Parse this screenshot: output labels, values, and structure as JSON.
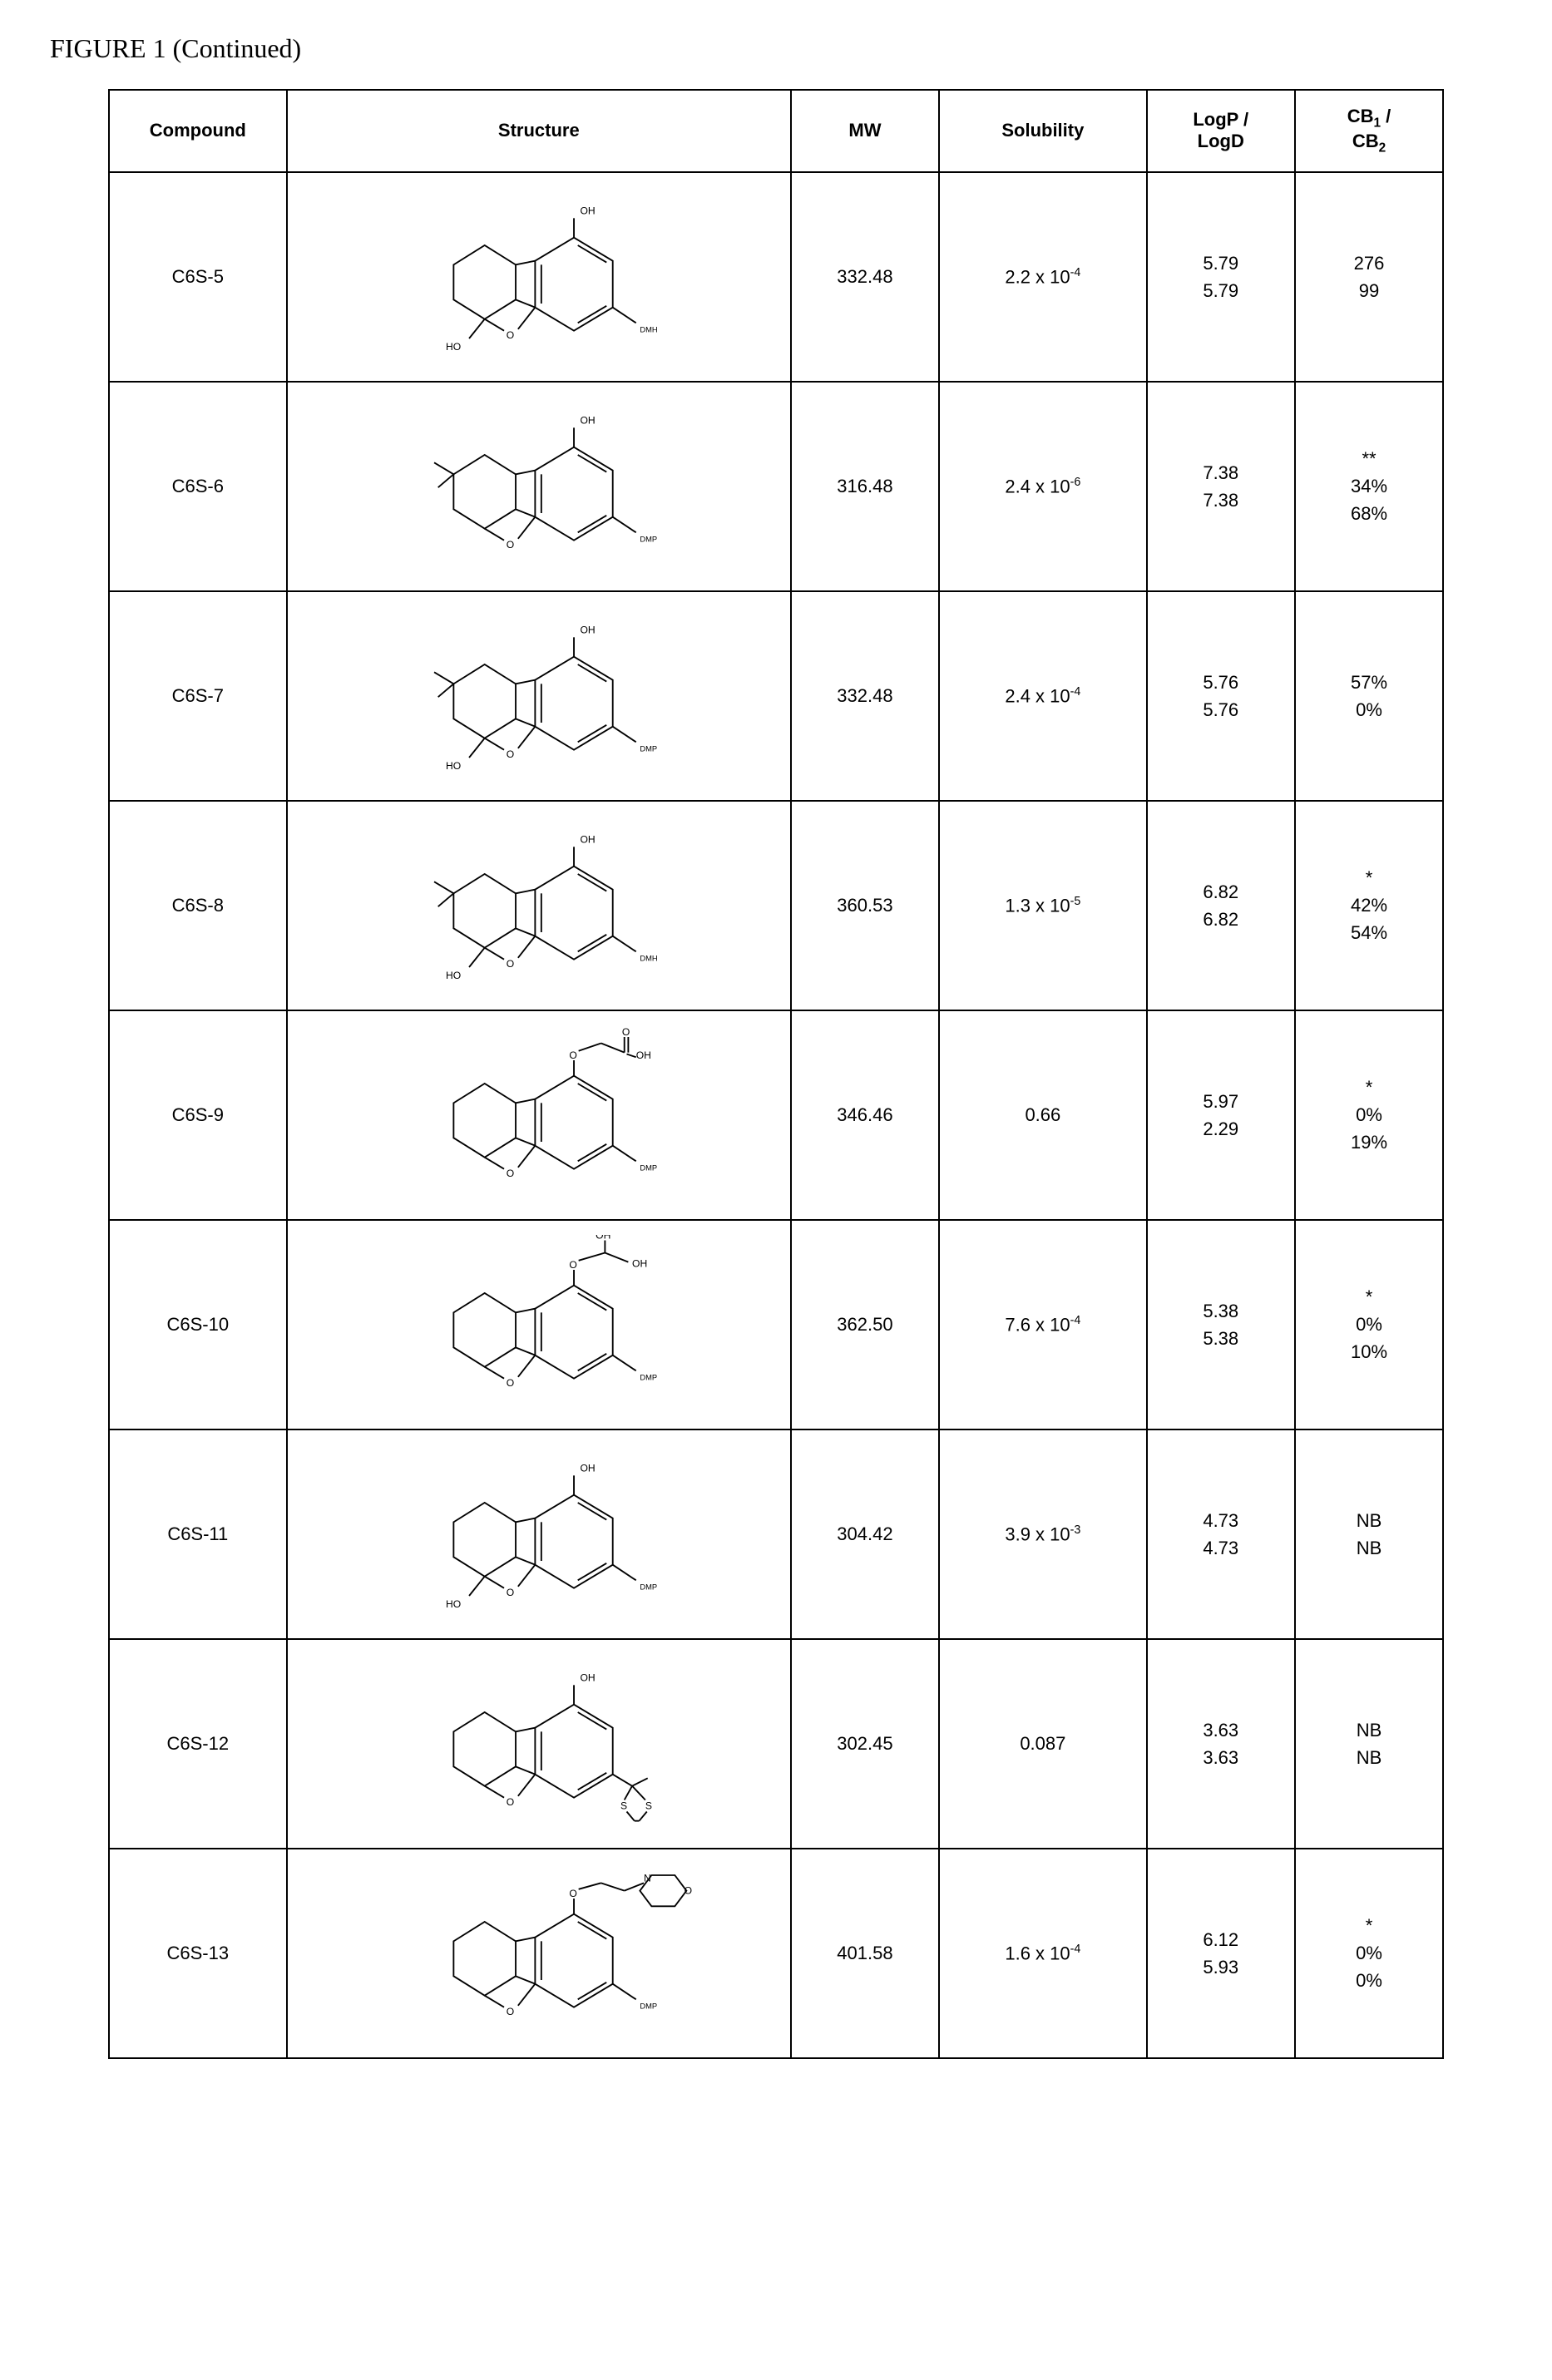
{
  "title": "FIGURE 1 (Continued)",
  "headers": {
    "compound": "Compound",
    "structure": "Structure",
    "mw": "MW",
    "solubility": "Solubility",
    "logp_label": "LogP /",
    "logd_label": "LogD",
    "cb1_label": "CB",
    "cb1_sub": "1",
    "cb_slash": " /",
    "cb2_label": "CB",
    "cb2_sub": "2"
  },
  "rows": [
    {
      "compound": "C6S-5",
      "mw": "332.48",
      "sol_base": "2.2 x 10",
      "sol_exp": "-4",
      "logp": "5.79",
      "logd": "5.79",
      "cb_note": "",
      "cb1": "276",
      "cb2": "99",
      "structure": {
        "oh_top": true,
        "ho_left": true,
        "dimethyl": false,
        "sub_label": "DMH",
        "side": "none"
      }
    },
    {
      "compound": "C6S-6",
      "mw": "316.48",
      "sol_base": "2.4 x 10",
      "sol_exp": "-6",
      "logp": "7.38",
      "logd": "7.38",
      "cb_note": "**",
      "cb1": "34%",
      "cb2": "68%",
      "structure": {
        "oh_top": true,
        "ho_left": false,
        "dimethyl": true,
        "sub_label": "DMP",
        "side": "none"
      }
    },
    {
      "compound": "C6S-7",
      "mw": "332.48",
      "sol_base": "2.4 x 10",
      "sol_exp": "-4",
      "logp": "5.76",
      "logd": "5.76",
      "cb_note": "",
      "cb1": "57%",
      "cb2": "0%",
      "structure": {
        "oh_top": true,
        "ho_left": true,
        "dimethyl": true,
        "sub_label": "DMP",
        "side": "none"
      }
    },
    {
      "compound": "C6S-8",
      "mw": "360.53",
      "sol_base": "1.3 x 10",
      "sol_exp": "-5",
      "logp": "6.82",
      "logd": "6.82",
      "cb_note": "*",
      "cb1": "42%",
      "cb2": "54%",
      "structure": {
        "oh_top": true,
        "ho_left": true,
        "dimethyl": true,
        "sub_label": "DMH",
        "side": "none"
      }
    },
    {
      "compound": "C6S-9",
      "mw": "346.46",
      "sol_base": "0.66",
      "sol_exp": "",
      "logp": "5.97",
      "logd": "2.29",
      "cb_note": "*",
      "cb1": "0%",
      "cb2": "19%",
      "structure": {
        "oh_top": false,
        "ho_left": false,
        "dimethyl": false,
        "sub_label": "DMP",
        "side": "acid"
      }
    },
    {
      "compound": "C6S-10",
      "mw": "362.50",
      "sol_base": "7.6 x 10",
      "sol_exp": "-4",
      "logp": "5.38",
      "logd": "5.38",
      "cb_note": "*",
      "cb1": "0%",
      "cb2": "10%",
      "structure": {
        "oh_top": false,
        "ho_left": false,
        "dimethyl": false,
        "sub_label": "DMP",
        "side": "diol"
      }
    },
    {
      "compound": "C6S-11",
      "mw": "304.42",
      "sol_base": "3.9 x 10",
      "sol_exp": "-3",
      "logp": "4.73",
      "logd": "4.73",
      "cb_note": "",
      "cb1": "NB",
      "cb2": "NB",
      "structure": {
        "oh_top": true,
        "ho_left": true,
        "dimethyl": false,
        "sub_label": "DMP",
        "side": "none"
      }
    },
    {
      "compound": "C6S-12",
      "mw": "302.45",
      "sol_base": "0.087",
      "sol_exp": "",
      "logp": "3.63",
      "logd": "3.63",
      "cb_note": "",
      "cb1": "NB",
      "cb2": "NB",
      "structure": {
        "oh_top": true,
        "ho_left": false,
        "dimethyl": false,
        "sub_label": "",
        "side": "dithiolane"
      }
    },
    {
      "compound": "C6S-13",
      "mw": "401.58",
      "sol_base": "1.6 x 10",
      "sol_exp": "-4",
      "logp": "6.12",
      "logd": "5.93",
      "cb_note": "*",
      "cb1": "0%",
      "cb2": "0%",
      "structure": {
        "oh_top": false,
        "ho_left": false,
        "dimethyl": false,
        "sub_label": "DMP",
        "side": "morpholine"
      }
    }
  ],
  "styling": {
    "border_color": "#000000",
    "background": "#ffffff",
    "header_fontsize": 22,
    "cell_fontsize": 22,
    "title_fontsize": 32,
    "stroke_width": 2,
    "chem_fontsize": 13,
    "chem_small_fontsize": 10
  }
}
